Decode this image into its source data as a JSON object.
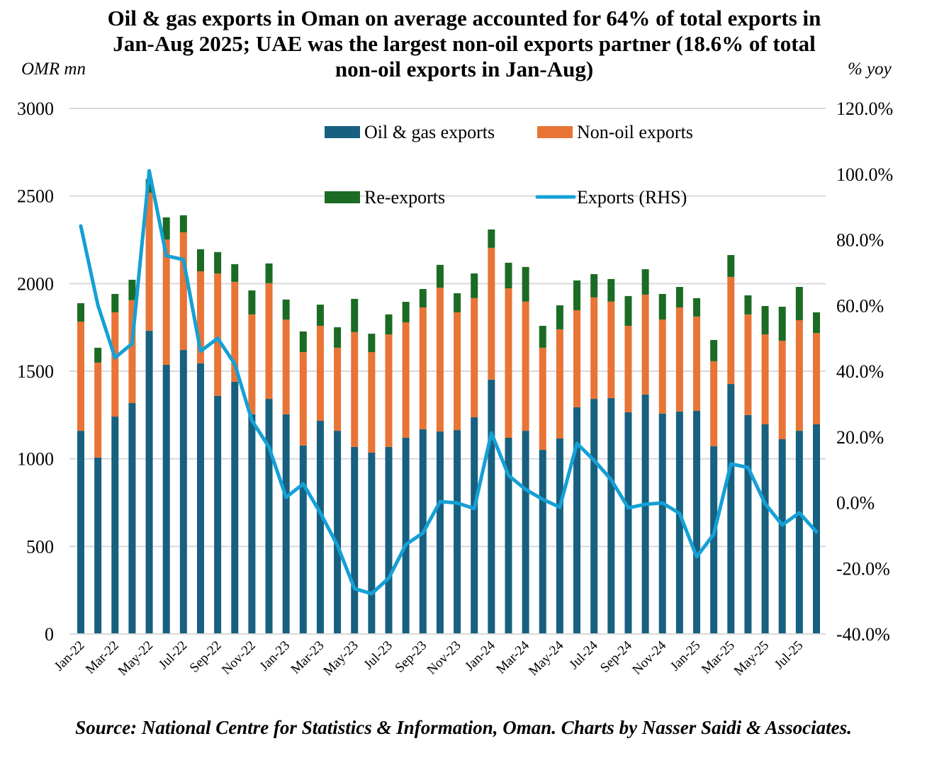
{
  "chart_data": {
    "type": "bar",
    "stacked": true,
    "title": "Oil & gas exports in Oman on average accounted for 64% of total exports in Jan-Aug 2025; UAE was the largest non-oil exports partner (18.6% of total non-oil exports in Jan-Aug)",
    "ylabel": "OMR mn",
    "y2label": "% yoy",
    "ylim": [
      0,
      3000
    ],
    "y2lim": [
      -40,
      120
    ],
    "yticks": [
      "0",
      "500",
      "1000",
      "1500",
      "2000",
      "2500",
      "3000"
    ],
    "y2ticks": [
      "-40.0%",
      "-20.0%",
      "0.0%",
      "20.0%",
      "40.0%",
      "60.0%",
      "80.0%",
      "100.0%",
      "120.0%"
    ],
    "grid": true,
    "legend_position": "top",
    "categories": [
      "Jan-22",
      "Feb-22",
      "Mar-22",
      "Apr-22",
      "May-22",
      "Jun-22",
      "Jul-22",
      "Aug-22",
      "Sep-22",
      "Oct-22",
      "Nov-22",
      "Dec-22",
      "Jan-23",
      "Feb-23",
      "Mar-23",
      "Apr-23",
      "May-23",
      "Jun-23",
      "Jul-23",
      "Aug-23",
      "Sep-23",
      "Oct-23",
      "Nov-23",
      "Dec-23",
      "Jan-24",
      "Feb-24",
      "Mar-24",
      "Apr-24",
      "May-24",
      "Jun-24",
      "Jul-24",
      "Aug-24",
      "Sep-24",
      "Oct-24",
      "Nov-24",
      "Dec-24",
      "Jan-25",
      "Feb-25",
      "Mar-25",
      "Apr-25",
      "May-25",
      "Jun-25",
      "Jul-25",
      "Aug-25"
    ],
    "xtick_labels": [
      "Jan-22",
      "Mar-22",
      "May-22",
      "Jul-22",
      "Sep-22",
      "Nov-22",
      "Jan-23",
      "Mar-23",
      "May-23",
      "Jul-23",
      "Sep-23",
      "Nov-23",
      "Jan-24",
      "Mar-24",
      "May-24",
      "Jul-24",
      "Sep-24",
      "Nov-24",
      "Jan-25",
      "Mar-25",
      "May-25",
      "Jul-25"
    ],
    "series": [
      {
        "name": "Oil & gas exports",
        "type": "bar",
        "axis": "left",
        "color": "#17607F",
        "values": [
          1160,
          1007,
          1241,
          1318,
          1731,
          1537,
          1621,
          1545,
          1359,
          1440,
          1254,
          1342,
          1254,
          1076,
          1217,
          1160,
          1068,
          1035,
          1068,
          1120,
          1169,
          1156,
          1164,
          1237,
          1452,
          1120,
          1160,
          1051,
          1116,
          1294,
          1342,
          1347,
          1266,
          1367,
          1258,
          1270,
          1274,
          1072,
          1427,
          1250,
          1197,
          1112,
          1160,
          1197
        ]
      },
      {
        "name": "Non-oil exports",
        "type": "bar",
        "axis": "left",
        "color": "#E87435",
        "values": [
          623,
          542,
          595,
          587,
          788,
          715,
          672,
          525,
          699,
          570,
          570,
          660,
          541,
          533,
          542,
          474,
          655,
          574,
          642,
          659,
          695,
          821,
          672,
          680,
          752,
          853,
          737,
          583,
          623,
          554,
          579,
          550,
          493,
          570,
          537,
          594,
          538,
          485,
          611,
          574,
          513,
          562,
          631,
          521
        ]
      },
      {
        "name": "Re-exports",
        "type": "bar",
        "axis": "left",
        "color": "#1B6B24",
        "values": [
          105,
          85,
          105,
          117,
          77,
          126,
          97,
          126,
          122,
          101,
          137,
          113,
          114,
          118,
          121,
          117,
          190,
          105,
          114,
          117,
          105,
          130,
          109,
          141,
          105,
          146,
          198,
          125,
          137,
          170,
          133,
          129,
          170,
          145,
          146,
          117,
          105,
          121,
          125,
          109,
          162,
          194,
          190,
          118
        ]
      },
      {
        "name": "Exports (RHS)",
        "type": "line",
        "axis": "right",
        "color": "#14A0D6",
        "values": [
          84.2,
          60.1,
          44.1,
          48.4,
          101.0,
          75.1,
          74.0,
          46.1,
          50.0,
          42.2,
          25.0,
          16.9,
          1.6,
          5.7,
          -3.1,
          -13.0,
          -26.2,
          -27.7,
          -23.0,
          -12.8,
          -9.2,
          0.3,
          -0.1,
          -1.8,
          21.2,
          8.3,
          4.0,
          1.0,
          -1.4,
          18.0,
          12.9,
          7.0,
          -1.6,
          -0.5,
          -0.1,
          -3.3,
          -16.5,
          -9.6,
          11.8,
          10.7,
          -0.3,
          -6.8,
          -3.1,
          -8.9
        ]
      }
    ]
  },
  "header": {
    "title": "Oil & gas exports in Oman on average accounted for 64% of total exports in Jan-Aug 2025; UAE was the largest non-oil exports partner (18.6% of total non-oil exports in Jan-Aug)",
    "left_unit": "OMR mn",
    "right_unit": "% yoy"
  },
  "legend": [
    {
      "label": "Oil & gas exports",
      "color": "#17607F",
      "shape": "rect"
    },
    {
      "label": "Non-oil exports",
      "color": "#E87435",
      "shape": "rect"
    },
    {
      "label": "Re-exports",
      "color": "#1B6B24",
      "shape": "rect"
    },
    {
      "label": "Exports (RHS)",
      "color": "#14A0D6",
      "shape": "line"
    }
  ],
  "footer": {
    "source": "Source: National Centre for Statistics & Information, Oman. Charts by Nasser Saidi & Associates."
  }
}
